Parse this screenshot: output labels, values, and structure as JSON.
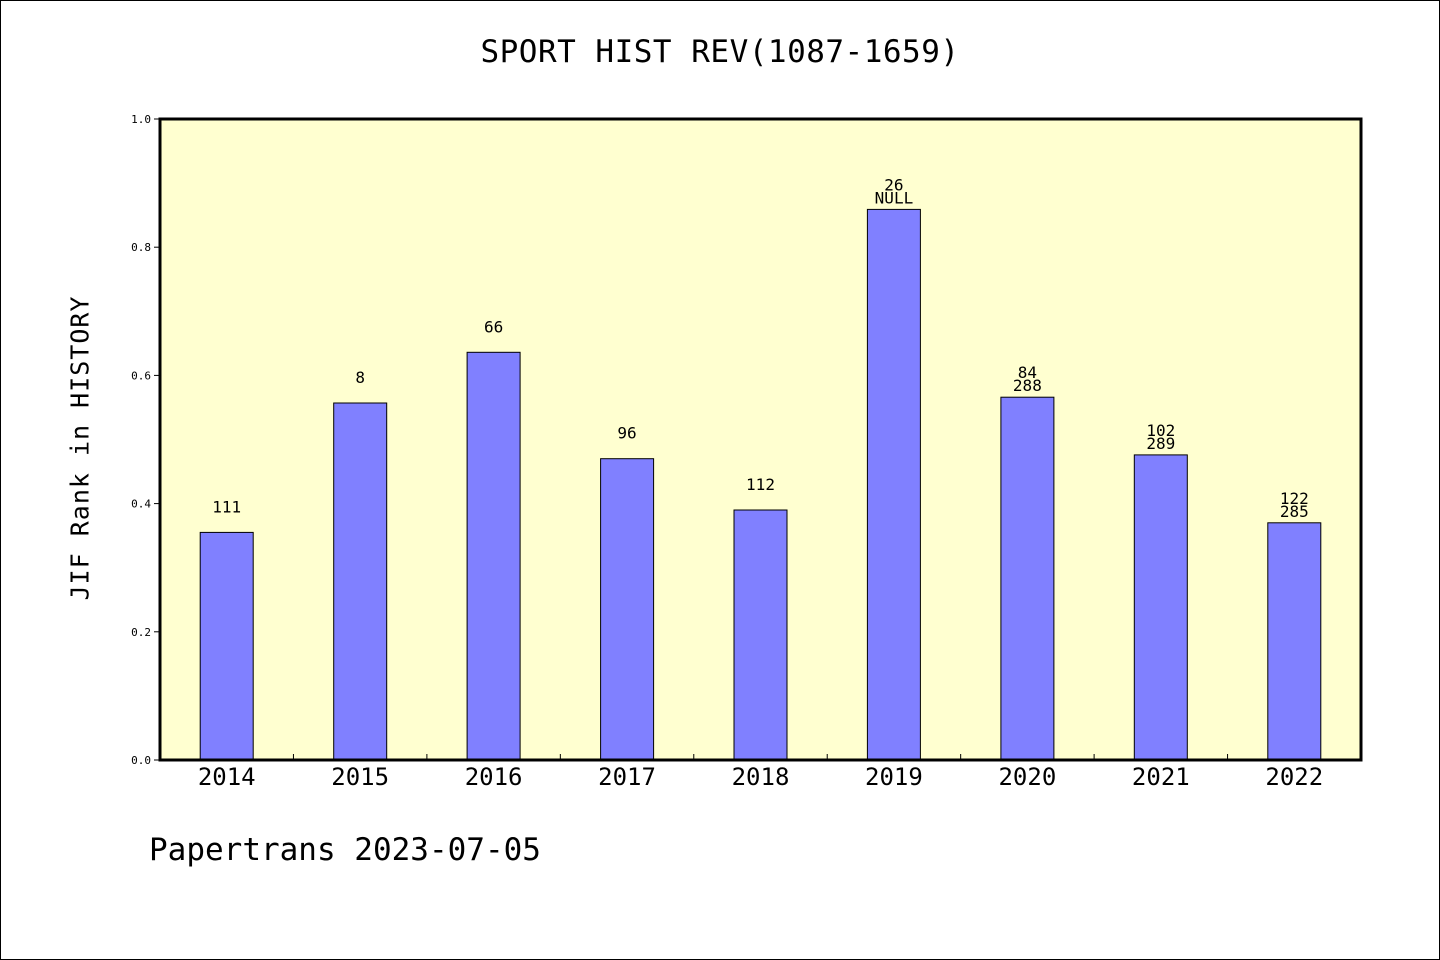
{
  "title": "SPORT HIST REV(1087-1659)",
  "footer": "Papertrans 2023-07-05",
  "chart_data": {
    "type": "bar",
    "title": "SPORT HIST REV(1087-1659)",
    "xlabel": "",
    "ylabel": "JIF Rank in HISTORY",
    "ylim": [
      0,
      1.0
    ],
    "yticks": [
      "0.0",
      "0.2",
      "0.4",
      "0.6",
      "0.8",
      "1.0"
    ],
    "grid": false,
    "plot_background": "#ffffd0",
    "bar_color": "#8080ff",
    "categories": [
      "2014",
      "2015",
      "2016",
      "2017",
      "2018",
      "2019",
      "2020",
      "2021",
      "2022"
    ],
    "values": [
      0.355,
      0.557,
      0.636,
      0.47,
      0.39,
      0.859,
      0.566,
      0.476,
      0.37
    ],
    "data_labels": [
      [
        "111"
      ],
      [
        "8"
      ],
      [
        "66"
      ],
      [
        "96"
      ],
      [
        "112"
      ],
      [
        "26",
        "NULL"
      ],
      [
        "84",
        "288"
      ],
      [
        "102",
        "289"
      ],
      [
        "122",
        "285"
      ]
    ]
  }
}
